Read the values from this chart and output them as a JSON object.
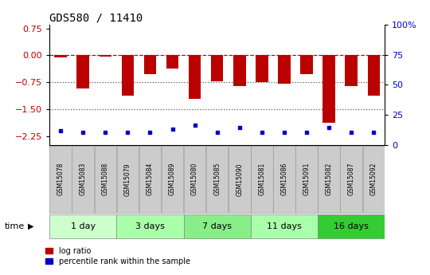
{
  "title": "GDS580 / 11410",
  "samples": [
    "GSM15078",
    "GSM15083",
    "GSM15088",
    "GSM15079",
    "GSM15084",
    "GSM15089",
    "GSM15080",
    "GSM15085",
    "GSM15090",
    "GSM15081",
    "GSM15086",
    "GSM15091",
    "GSM15082",
    "GSM15087",
    "GSM15092"
  ],
  "log_ratios": [
    -0.07,
    -0.93,
    -0.03,
    -1.12,
    -0.52,
    -0.38,
    -1.22,
    -0.72,
    -0.85,
    -0.75,
    -0.8,
    -0.52,
    -1.88,
    -0.85,
    -1.12
  ],
  "percentile_ranks": [
    5,
    3,
    3,
    3,
    3,
    6,
    10,
    3,
    8,
    3,
    3,
    3,
    8,
    3,
    3
  ],
  "groups": [
    {
      "label": "1 day",
      "start": 0,
      "end": 3,
      "color": "#ccffcc"
    },
    {
      "label": "3 days",
      "start": 3,
      "end": 6,
      "color": "#aaffaa"
    },
    {
      "label": "7 days",
      "start": 6,
      "end": 9,
      "color": "#88ee88"
    },
    {
      "label": "11 days",
      "start": 9,
      "end": 12,
      "color": "#aaffaa"
    },
    {
      "label": "16 days",
      "start": 12,
      "end": 15,
      "color": "#33cc33"
    }
  ],
  "ylim_left": [
    -2.5,
    0.85
  ],
  "yticks_left": [
    0.75,
    0,
    -0.75,
    -1.5,
    -2.25
  ],
  "yticks_right_vals": [
    0,
    25,
    50,
    75,
    100
  ],
  "yticks_right_labels": [
    "0",
    "25",
    "50",
    "75",
    "100%"
  ],
  "bar_color": "#bb0000",
  "percentile_color": "#0000cc",
  "dashed_line_color": "#cc0000",
  "dotted_line_color": "#555555",
  "background_color": "#ffffff",
  "sample_box_color": "#cccccc",
  "bar_width": 0.55,
  "title_fontsize": 10,
  "tick_fontsize": 8,
  "sample_fontsize": 5.5,
  "group_fontsize": 8
}
